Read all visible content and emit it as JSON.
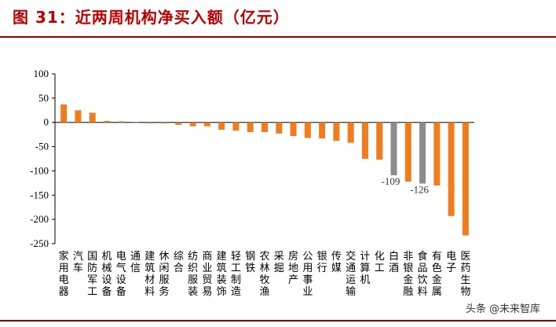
{
  "title": "图 31：近两周机构净买入额（亿元）",
  "watermark": "头条 @未来智库",
  "colors": {
    "title": "#c00000",
    "rule": "#9b0000",
    "positive": "#f07c1e",
    "negative": "#f07c1e",
    "highlight": "#8c8c8c",
    "axis": "#000000"
  },
  "chart_data": {
    "type": "bar",
    "title": "",
    "xlabel": "",
    "ylabel": "",
    "ylim": [
      -250,
      100
    ],
    "yticks": [
      100,
      50,
      0,
      -50,
      -100,
      -150,
      -200,
      -250
    ],
    "grid": false,
    "categories": [
      "家用电器",
      "汽车",
      "国防军工",
      "机械设备",
      "电气设备",
      "通信",
      "建筑材料",
      "休闲服务",
      "综合",
      "纺织服装",
      "商业贸易",
      "建筑装饰",
      "轻工制造",
      "钢铁",
      "农林牧渔",
      "采掘",
      "房地产",
      "公用事业",
      "银行",
      "传媒",
      "交通运输",
      "计算机",
      "化工",
      "白酒",
      "非银金融",
      "食品饮料",
      "有色金属",
      "电子",
      "医药生物"
    ],
    "values": [
      37,
      25,
      20,
      3,
      2,
      0,
      -2,
      -2,
      -5,
      -8,
      -8,
      -15,
      -17,
      -20,
      -20,
      -23,
      -28,
      -32,
      -33,
      -38,
      -42,
      -75,
      -77,
      -109,
      -122,
      -126,
      -130,
      -193,
      -233
    ],
    "highlight_categories": [
      "白酒",
      "食品饮料"
    ],
    "data_labels": [
      {
        "category": "白酒",
        "text": "-109"
      },
      {
        "category": "食品饮料",
        "text": "-126"
      }
    ]
  }
}
